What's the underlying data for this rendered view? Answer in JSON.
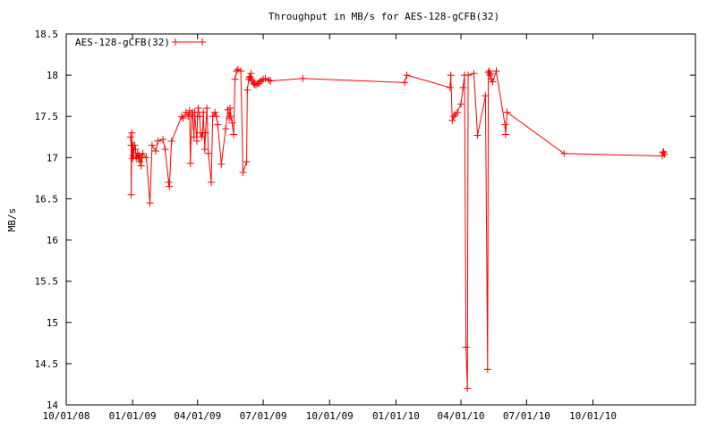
{
  "chart_data": {
    "type": "line",
    "title": "Throughput in MB/s for AES-128-gCFB(32)",
    "xlabel": "",
    "ylabel": "MB/s",
    "x_axis_kind": "date",
    "x_ticks": [
      "10/01/08",
      "01/01/09",
      "04/01/09",
      "07/01/09",
      "10/01/09",
      "01/01/10",
      "04/01/10",
      "07/01/10",
      "10/01/10"
    ],
    "xlim": [
      "2008-10-01",
      "2011-02-20"
    ],
    "y_ticks": [
      "14",
      "14.5",
      "15",
      "15.5",
      "16",
      "16.5",
      "17",
      "17.5",
      "18",
      "18.5"
    ],
    "ylim": [
      14,
      18.5
    ],
    "grid": false,
    "legend_position": "top-left",
    "line_color": "#ff0000",
    "marker": "plus",
    "series": [
      {
        "name": "AES-128-gCFB(32)",
        "x": [
          "2008-12-29",
          "2008-12-30",
          "2008-12-30",
          "2008-12-31",
          "2009-01-01",
          "2009-01-02",
          "2009-01-02",
          "2009-01-04",
          "2009-01-05",
          "2009-01-06",
          "2009-01-07",
          "2009-01-08",
          "2009-01-09",
          "2009-01-10",
          "2009-01-11",
          "2009-01-12",
          "2009-01-13",
          "2009-01-14",
          "2009-01-15",
          "2009-01-20",
          "2009-01-25",
          "2009-01-28",
          "2009-02-02",
          "2009-02-05",
          "2009-02-12",
          "2009-02-15",
          "2009-02-20",
          "2009-02-21",
          "2009-02-24",
          "2009-03-10",
          "2009-03-12",
          "2009-03-16",
          "2009-03-19",
          "2009-03-21",
          "2009-03-22",
          "2009-03-24",
          "2009-03-25",
          "2009-03-27",
          "2009-03-28",
          "2009-03-31",
          "2009-04-01",
          "2009-04-02",
          "2009-04-04",
          "2009-04-05",
          "2009-04-07",
          "2009-04-08",
          "2009-04-09",
          "2009-04-11",
          "2009-04-12",
          "2009-04-14",
          "2009-04-16",
          "2009-04-20",
          "2009-04-22",
          "2009-04-25",
          "2009-04-27",
          "2009-04-29",
          "2009-05-04",
          "2009-05-10",
          "2009-05-13",
          "2009-05-15",
          "2009-05-16",
          "2009-05-17",
          "2009-05-19",
          "2009-05-21",
          "2009-05-23",
          "2009-05-25",
          "2009-05-27",
          "2009-05-31",
          "2009-06-03",
          "2009-06-08",
          "2009-06-09",
          "2009-06-11",
          "2009-06-12",
          "2009-06-13",
          "2009-06-14",
          "2009-06-15",
          "2009-06-16",
          "2009-06-18",
          "2009-06-19",
          "2009-06-21",
          "2009-06-23",
          "2009-06-25",
          "2009-06-26",
          "2009-06-28",
          "2009-07-01",
          "2009-07-04",
          "2009-07-09",
          "2009-07-11",
          "2009-08-25",
          "2010-01-13",
          "2010-01-16",
          "2010-03-17",
          "2010-03-18",
          "2010-03-20",
          "2010-03-22",
          "2010-03-24",
          "2010-03-27",
          "2010-04-01",
          "2010-04-04",
          "2010-04-06",
          "2010-04-08",
          "2010-04-10",
          "2010-04-11",
          "2010-04-19",
          "2010-04-24",
          "2010-05-05",
          "2010-05-08",
          "2010-05-09",
          "2010-05-10",
          "2010-05-11",
          "2010-05-12",
          "2010-05-13",
          "2010-05-15",
          "2010-05-20",
          "2010-06-01",
          "2010-06-02",
          "2010-06-04",
          "2010-08-22",
          "2011-01-05",
          "2011-01-06",
          "2011-01-07",
          "2011-01-08"
        ],
        "y": [
          17.25,
          17.15,
          16.55,
          17.3,
          16.99,
          17.15,
          17.02,
          17.15,
          17.1,
          17.0,
          17.02,
          17.05,
          16.99,
          17.03,
          16.95,
          17.0,
          16.9,
          17.0,
          17.05,
          17.0,
          16.45,
          17.15,
          17.08,
          17.2,
          17.22,
          17.1,
          16.7,
          16.65,
          17.2,
          17.5,
          17.48,
          17.55,
          17.5,
          17.57,
          16.93,
          17.52,
          17.55,
          17.25,
          17.55,
          17.2,
          17.5,
          17.6,
          17.5,
          17.3,
          17.25,
          17.3,
          17.55,
          17.1,
          17.3,
          17.6,
          17.05,
          16.7,
          17.5,
          17.55,
          17.5,
          17.4,
          16.92,
          17.35,
          17.58,
          17.48,
          17.6,
          17.5,
          17.42,
          17.28,
          17.95,
          18.05,
          18.07,
          18.05,
          16.82,
          16.95,
          17.82,
          17.95,
          17.98,
          17.97,
          18.02,
          17.95,
          17.93,
          17.9,
          17.89,
          17.88,
          17.9,
          17.9,
          17.92,
          17.93,
          17.95,
          17.96,
          17.94,
          17.93,
          17.96,
          17.91,
          18.0,
          17.85,
          18.0,
          17.45,
          17.5,
          17.52,
          17.55,
          17.65,
          17.85,
          18.0,
          14.7,
          14.2,
          18.0,
          18.02,
          17.27,
          17.75,
          14.43,
          18.03,
          18.05,
          18.0,
          18.02,
          17.95,
          17.92,
          18.05,
          17.4,
          17.28,
          17.55,
          17.05,
          17.02,
          17.06,
          17.07,
          17.04
        ]
      }
    ]
  }
}
